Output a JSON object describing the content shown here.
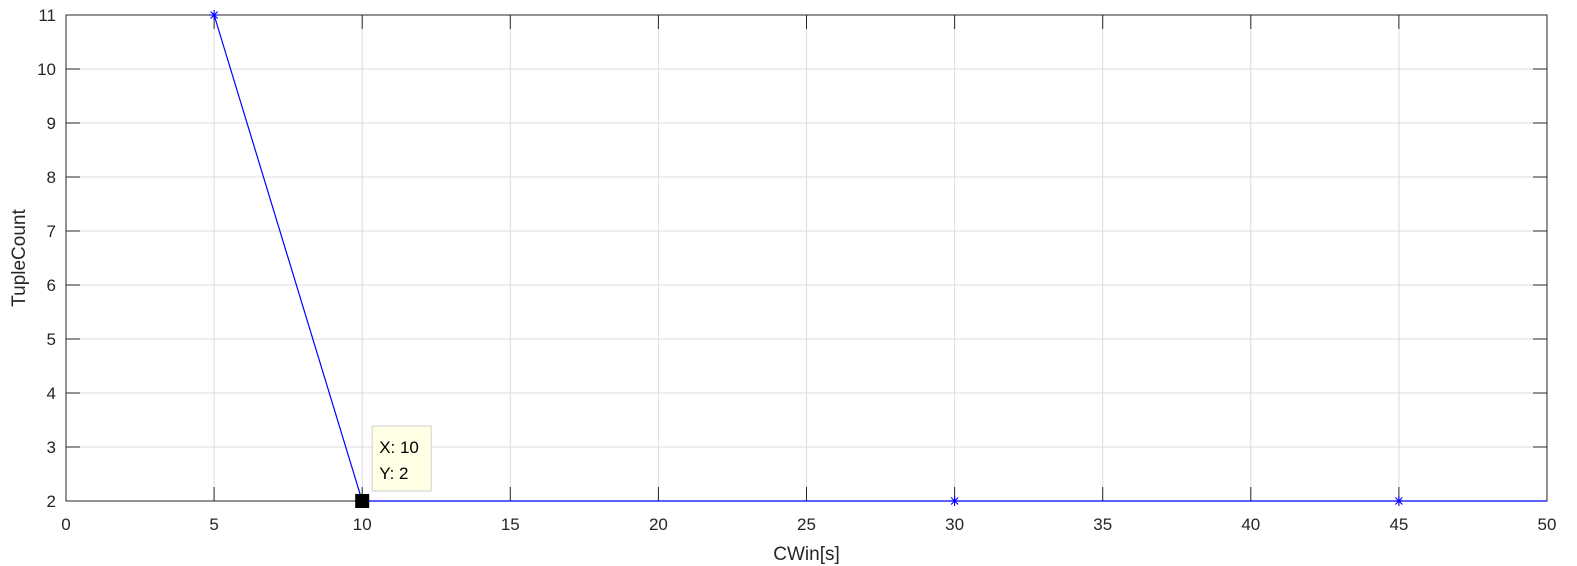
{
  "chart_data": {
    "type": "line",
    "xlabel": "CWin[s]",
    "ylabel": "TupleCount",
    "xlim": [
      0,
      50
    ],
    "ylim": [
      2,
      11
    ],
    "grid": true,
    "x_ticks": [
      0,
      5,
      10,
      15,
      20,
      25,
      30,
      35,
      40,
      45,
      50
    ],
    "y_ticks": [
      2,
      3,
      4,
      5,
      6,
      7,
      8,
      9,
      10,
      11
    ],
    "series": [
      {
        "x": [
          5,
          10,
          30,
          45,
          50
        ],
        "values": [
          11,
          2,
          2,
          2,
          2
        ],
        "color": "#0000ff",
        "marker": "*"
      }
    ],
    "datatip": {
      "x": 10,
      "y": 2,
      "x_text": "X: 10",
      "y_text": "Y: 2"
    }
  }
}
